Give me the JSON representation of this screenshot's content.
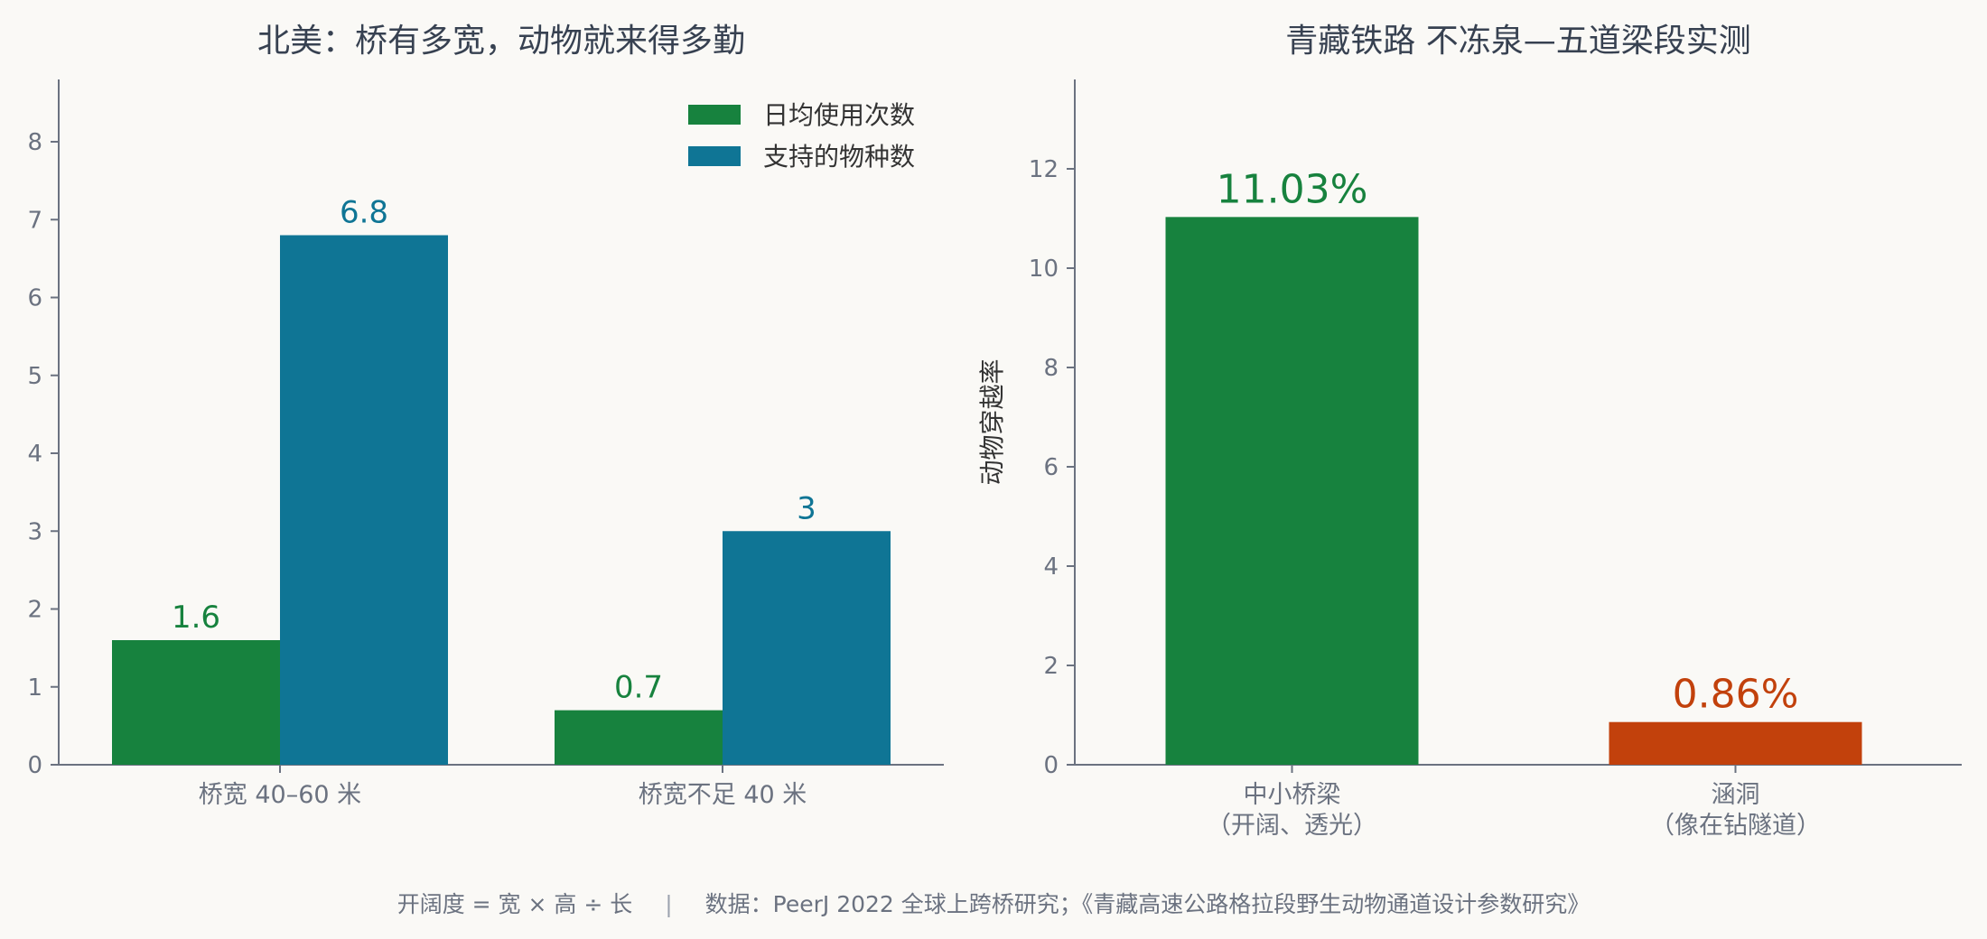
{
  "colors": {
    "green": "#17823e",
    "blue": "#0f7595",
    "orange": "#c2410c",
    "axis": "#6b7280",
    "title": "#374151",
    "tick_text": "#6b7280"
  },
  "footer": {
    "formula": "开阔度 = 宽 × 高 ÷ 长",
    "separator": "|",
    "source": "数据：PeerJ 2022 全球上跨桥研究；《青藏高速公路格拉段野生动物通道设计参数研究》"
  },
  "chart_data": [
    {
      "type": "bar",
      "title": "北美：桥有多宽，动物就来得多勤",
      "xlabel": "",
      "ylabel": "",
      "categories": [
        "桥宽 40–60 米",
        "桥宽不足 40 米"
      ],
      "series": [
        {
          "name": "日均使用次数",
          "values": [
            1.6,
            0.7
          ],
          "labels": [
            "1.6",
            "0.7"
          ],
          "color": "#17823e"
        },
        {
          "name": "支持的物种数",
          "values": [
            6.8,
            3
          ],
          "labels": [
            "6.8",
            "3"
          ],
          "color": "#0f7595"
        }
      ],
      "ylim": [
        0,
        8.8
      ],
      "yticks": [
        0,
        1,
        2,
        3,
        4,
        5,
        6,
        7,
        8
      ],
      "grid": false,
      "legend": "top-right"
    },
    {
      "type": "bar",
      "title": "青藏铁路 不冻泉—五道梁段实测",
      "xlabel": "",
      "ylabel": "动物穿越率",
      "categories": [
        [
          "中小桥梁",
          "（开阔、透光）"
        ],
        [
          "涵洞",
          "（像在钻隧道）"
        ]
      ],
      "values": [
        11.03,
        0.86
      ],
      "labels": [
        "11.03%",
        "0.86%"
      ],
      "colors": [
        "#17823e",
        "#c2410c"
      ],
      "ylim": [
        0,
        13.8
      ],
      "yticks": [
        0,
        2,
        4,
        6,
        8,
        10,
        12
      ],
      "grid": false,
      "legend": "none"
    }
  ]
}
